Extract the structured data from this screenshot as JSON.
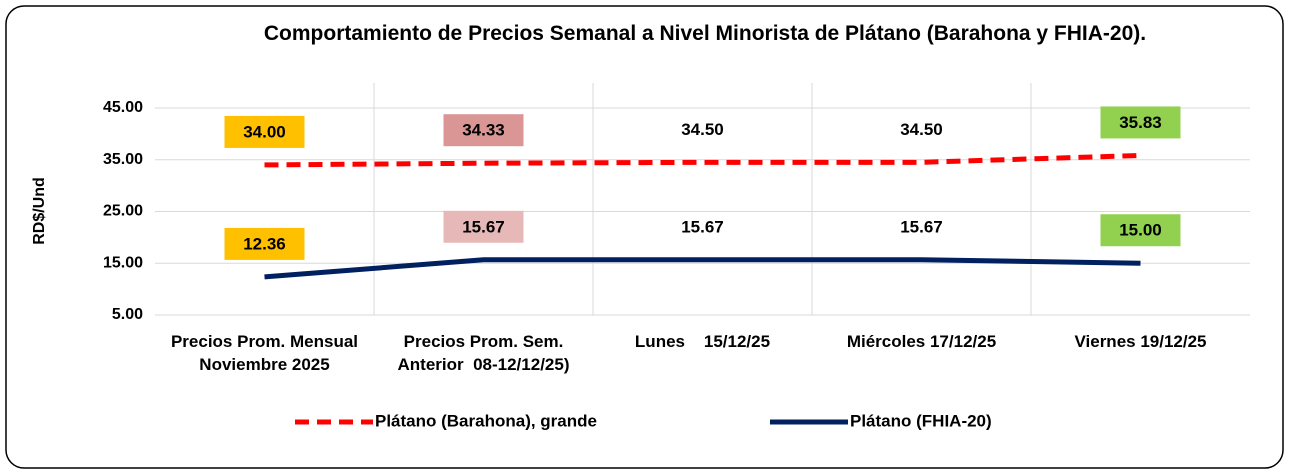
{
  "chart_data": {
    "type": "line",
    "title": "Comportamiento de Precios Semanal a Nivel Minorista de Plátano (Barahona y FHIA-20).",
    "y_label": "RD$/Und",
    "categories": [
      "Precios Prom. Mensual Noviembre 2025",
      "Precios Prom. Sem. Anterior  08-12/12/25)",
      "Lunes    15/12/25",
      "Miércoles 17/12/25",
      "Viernes 19/12/25"
    ],
    "series": [
      {
        "name": "Plátano (Barahona), grande",
        "color": "#ff0000",
        "dashed": true,
        "values": [
          34.0,
          34.33,
          34.5,
          34.5,
          35.83
        ],
        "value_labels": [
          "34.00",
          "34.33",
          "34.50",
          "34.50",
          "35.83"
        ],
        "label_colors": [
          "#ffc000",
          "#d99694",
          null,
          null,
          "#92d050"
        ]
      },
      {
        "name": "Plátano (FHIA-20)",
        "color": "#002060",
        "dashed": false,
        "values": [
          12.36,
          15.67,
          15.67,
          15.67,
          15.0
        ],
        "value_labels": [
          "12.36",
          "15.67",
          "15.67",
          "15.67",
          "15.00"
        ],
        "label_colors": [
          "#ffc000",
          "#e6b9b8",
          null,
          null,
          "#92d050"
        ]
      }
    ],
    "ylim": [
      5,
      45
    ],
    "yticks": [
      {
        "value": 5,
        "label": "5.00"
      },
      {
        "value": 15,
        "label": "15.00"
      },
      {
        "value": 25,
        "label": "25.00"
      },
      {
        "value": 35,
        "label": "35.00"
      },
      {
        "value": 45,
        "label": "45.00"
      }
    ],
    "grid": true,
    "legend": "bottom"
  }
}
